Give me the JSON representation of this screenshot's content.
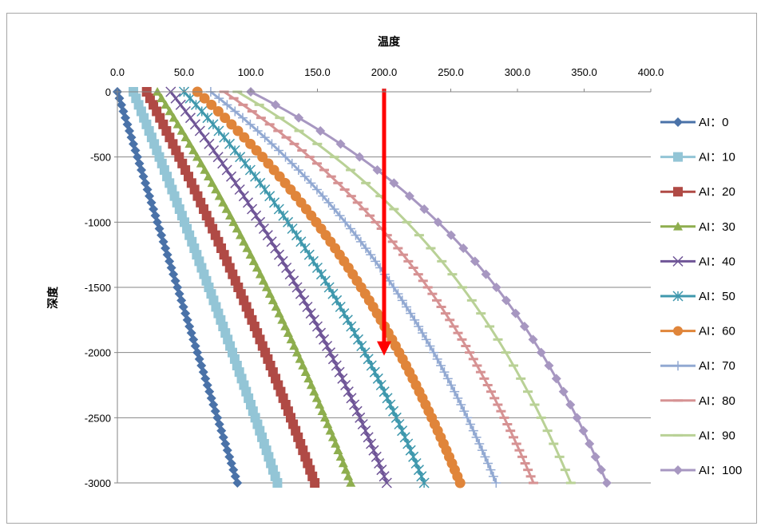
{
  "chart_data": {
    "type": "scatter",
    "title": "",
    "xlabel": "温度",
    "ylabel": "深度",
    "xlim": [
      0,
      400
    ],
    "ylim": [
      -3000,
      0
    ],
    "x_ticks": [
      "0.0",
      "50.0",
      "100.0",
      "150.0",
      "200.0",
      "250.0",
      "300.0",
      "350.0",
      "400.0"
    ],
    "y_ticks": [
      "0",
      "-500",
      "-1000",
      "-1500",
      "-2000",
      "-2500",
      "-3000"
    ],
    "x_axis_position": "top",
    "grid": "horizontal",
    "legend_position": "right",
    "depth_step": 50,
    "series": [
      {
        "name": "AI：0",
        "color": "#4a72a8",
        "marker": "diamond",
        "top_temp": 0,
        "bottom_temp": 90
      },
      {
        "name": "AI：10",
        "color": "#93c5d6",
        "marker": "square",
        "top_temp": 12,
        "bottom_temp": 120
      },
      {
        "name": "AI：20",
        "color": "#b04a45",
        "marker": "square",
        "top_temp": 22,
        "bottom_temp": 148
      },
      {
        "name": "AI：30",
        "color": "#8eae4e",
        "marker": "triangle",
        "top_temp": 30,
        "bottom_temp": 175
      },
      {
        "name": "AI：40",
        "color": "#6f5597",
        "marker": "x",
        "top_temp": 40,
        "bottom_temp": 202
      },
      {
        "name": "AI：50",
        "color": "#3f98ad",
        "marker": "star",
        "top_temp": 50,
        "bottom_temp": 230
      },
      {
        "name": "AI：60",
        "color": "#e0853a",
        "marker": "circle",
        "top_temp": 60,
        "bottom_temp": 257
      },
      {
        "name": "AI：70",
        "color": "#92a9d2",
        "marker": "plus",
        "top_temp": 70,
        "bottom_temp": 284
      },
      {
        "name": "AI：80",
        "color": "#d69293",
        "marker": "dash",
        "top_temp": 80,
        "bottom_temp": 312
      },
      {
        "name": "AI：90",
        "color": "#b9d196",
        "marker": "dash",
        "top_temp": 90,
        "bottom_temp": 340
      },
      {
        "name": "AI：100",
        "color": "#a797c1",
        "marker": "diamond",
        "top_temp": 100,
        "bottom_temp": 367
      }
    ],
    "annotations": [
      {
        "type": "arrow",
        "color": "#ff0000",
        "x": 200,
        "y_from": 0,
        "y_to": -2000
      }
    ]
  }
}
